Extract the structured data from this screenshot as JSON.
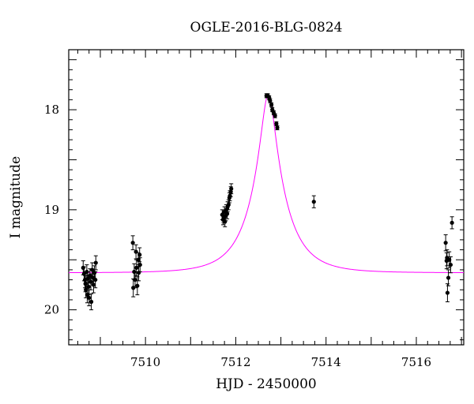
{
  "chart_data": {
    "type": "scatter",
    "title": "OGLE-2016-BLG-0824",
    "xlabel": "HJD - 2450000",
    "ylabel": "I magnitude",
    "xlim": [
      7508.3,
      7517.05
    ],
    "ylim": [
      20.35,
      17.4
    ],
    "y_inverted": true,
    "x_ticks": [
      7510,
      7512,
      7514,
      7516
    ],
    "x_tick_labels": [
      "7510",
      "7512",
      "7514",
      "7516"
    ],
    "y_ticks": [
      18,
      19,
      20
    ],
    "y_tick_labels": [
      "18",
      "19",
      "20"
    ],
    "grid": false,
    "model": {
      "color": "#ff00ff",
      "t0": 7512.72,
      "base_mag": 19.63,
      "peak_mag": 17.85,
      "tE": 0.75
    },
    "series": [
      {
        "color": "#000000",
        "points": [
          [
            7508.62,
            19.58,
            0.07
          ],
          [
            7508.64,
            19.64,
            0.07
          ],
          [
            7508.66,
            19.7,
            0.08
          ],
          [
            7508.67,
            19.74,
            0.08
          ],
          [
            7508.68,
            19.8,
            0.08
          ],
          [
            7508.7,
            19.62,
            0.07
          ],
          [
            7508.71,
            19.85,
            0.08
          ],
          [
            7508.72,
            19.69,
            0.07
          ],
          [
            7508.74,
            19.77,
            0.08
          ],
          [
            7508.75,
            19.88,
            0.08
          ],
          [
            7508.77,
            19.66,
            0.07
          ],
          [
            7508.79,
            19.72,
            0.08
          ],
          [
            7508.8,
            19.92,
            0.08
          ],
          [
            7508.82,
            19.6,
            0.07
          ],
          [
            7508.84,
            19.68,
            0.07
          ],
          [
            7508.85,
            19.75,
            0.08
          ],
          [
            7508.87,
            19.63,
            0.07
          ],
          [
            7508.89,
            19.7,
            0.08
          ],
          [
            7508.9,
            19.53,
            0.07
          ],
          [
            7509.72,
            19.33,
            0.07
          ],
          [
            7509.73,
            19.78,
            0.09
          ],
          [
            7509.75,
            19.62,
            0.08
          ],
          [
            7509.77,
            19.7,
            0.08
          ],
          [
            7509.79,
            19.42,
            0.07
          ],
          [
            7509.8,
            19.58,
            0.08
          ],
          [
            7509.82,
            19.76,
            0.09
          ],
          [
            7509.84,
            19.5,
            0.07
          ],
          [
            7509.85,
            19.63,
            0.08
          ],
          [
            7509.87,
            19.45,
            0.07
          ],
          [
            7509.88,
            19.55,
            0.07
          ],
          [
            7511.7,
            19.05,
            0.05
          ],
          [
            7511.72,
            19.1,
            0.05
          ],
          [
            7511.73,
            19.08,
            0.05
          ],
          [
            7511.75,
            19.02,
            0.05
          ],
          [
            7511.76,
            19.12,
            0.05
          ],
          [
            7511.78,
            19.06,
            0.05
          ],
          [
            7511.79,
            19.0,
            0.05
          ],
          [
            7511.81,
            19.04,
            0.05
          ],
          [
            7511.82,
            18.97,
            0.05
          ],
          [
            7511.84,
            18.95,
            0.05
          ],
          [
            7511.86,
            18.88,
            0.05
          ],
          [
            7511.87,
            18.86,
            0.05
          ],
          [
            7511.89,
            18.82,
            0.05
          ],
          [
            7511.9,
            18.79,
            0.05
          ],
          [
            7512.68,
            17.86,
            0.02
          ],
          [
            7512.71,
            17.86,
            0.02
          ],
          [
            7512.74,
            17.88,
            0.02
          ],
          [
            7512.76,
            17.91,
            0.02
          ],
          [
            7512.79,
            17.95,
            0.02
          ],
          [
            7512.81,
            18.0,
            0.02
          ],
          [
            7512.84,
            18.03,
            0.02
          ],
          [
            7512.87,
            18.06,
            0.02
          ],
          [
            7512.9,
            18.14,
            0.02
          ],
          [
            7512.92,
            18.18,
            0.02
          ],
          [
            7513.73,
            18.92,
            0.06
          ],
          [
            7516.65,
            19.33,
            0.08
          ],
          [
            7516.67,
            19.51,
            0.08
          ],
          [
            7516.68,
            19.48,
            0.08
          ],
          [
            7516.69,
            19.83,
            0.09
          ],
          [
            7516.71,
            19.68,
            0.08
          ],
          [
            7516.73,
            19.5,
            0.08
          ],
          [
            7516.76,
            19.55,
            0.08
          ],
          [
            7516.79,
            19.13,
            0.06
          ]
        ]
      }
    ]
  }
}
